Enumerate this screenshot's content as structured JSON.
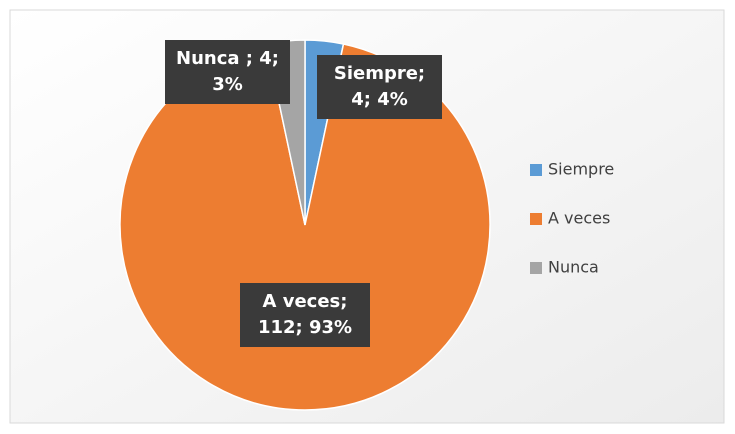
{
  "chart_data": {
    "type": "pie",
    "categories": [
      "Siempre",
      "A veces",
      "Nunca"
    ],
    "values": [
      4,
      112,
      4
    ],
    "value_labels": [
      "Siempre; 4; 4%",
      "A veces; 112; 93%",
      "Nunca ; 4; 3%"
    ],
    "colors": [
      "#5b9bd5",
      "#ed7d31",
      "#a5a5a5"
    ],
    "legend": "right"
  }
}
